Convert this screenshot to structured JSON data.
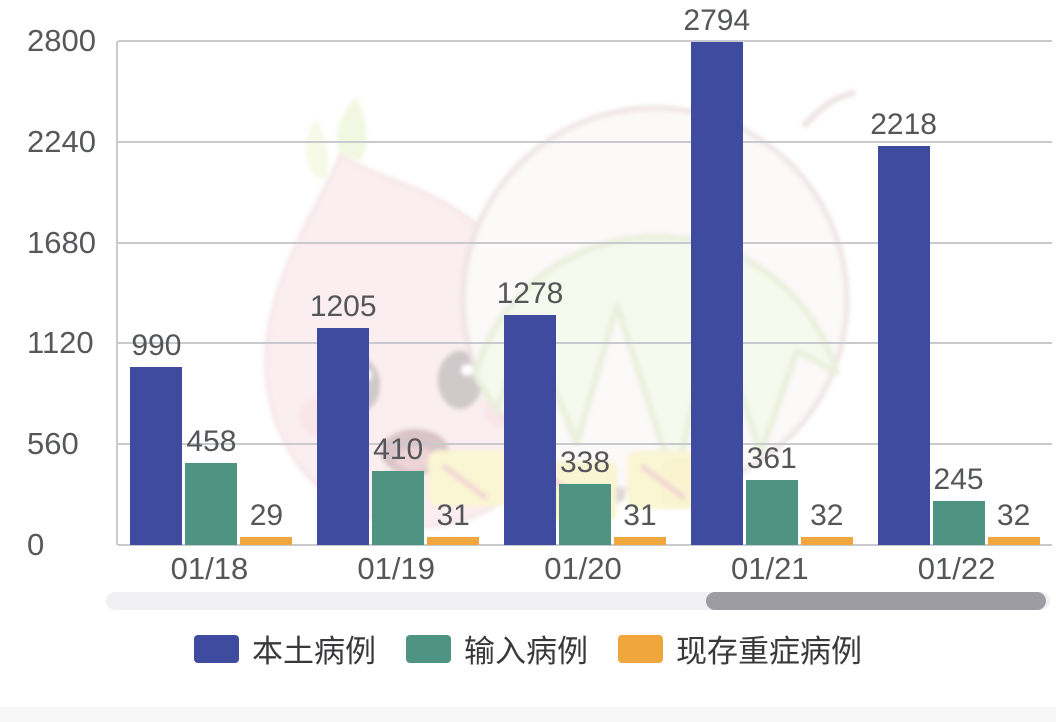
{
  "chart_data": {
    "type": "bar",
    "title": "",
    "xlabel": "",
    "ylabel": "",
    "categories": [
      "01/18",
      "01/19",
      "01/20",
      "01/21",
      "01/22"
    ],
    "series": [
      {
        "id": "local-cases",
        "name": "本土病例",
        "color": "#3f4b9e",
        "values": [
          990,
          1205,
          1278,
          2794,
          2218
        ]
      },
      {
        "id": "imported-cases",
        "name": "输入病例",
        "color": "#4f9483",
        "values": [
          458,
          410,
          338,
          361,
          245
        ]
      },
      {
        "id": "severe-cases",
        "name": "现存重症病例",
        "color": "#efa73d",
        "values": [
          29,
          31,
          31,
          32,
          32
        ]
      }
    ],
    "ylim": [
      0,
      2800
    ],
    "yticks": [
      0,
      560,
      1120,
      1680,
      2240,
      2800
    ],
    "grid": true,
    "value_labels": true,
    "legend_position": "bottom"
  },
  "colors": {
    "gridline": "#c9cacd",
    "axis_text": "#57585b",
    "value_text": "#55565a",
    "legend_text": "#39393b",
    "scrollbar_track": "#f0f0f3",
    "scrollbar_thumb": "#9c9ca2"
  }
}
